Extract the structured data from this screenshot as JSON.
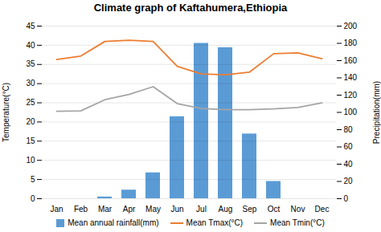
{
  "chart_data": {
    "type": "bar",
    "title": "Climate graph of Kaftahumera,Ethiopia",
    "categories": [
      "Jan",
      "Feb",
      "Mar",
      "Apr",
      "May",
      "Jun",
      "Jul",
      "Aug",
      "Sep",
      "Oct",
      "Nov",
      "Dec"
    ],
    "series": [
      {
        "name": "Mean annual rainfall(mm)",
        "type": "bar",
        "color": "#5B9BD5",
        "axis": "y2",
        "values": [
          0,
          0,
          2,
          10,
          30,
          95,
          180,
          175,
          75,
          20,
          0,
          0
        ]
      },
      {
        "name": "Mean Tmax(°C)",
        "type": "line",
        "color": "#ED7D31",
        "values": [
          36.3,
          37.2,
          41.0,
          41.3,
          41.0,
          34.5,
          32.5,
          32.3,
          33.0,
          37.8,
          38.0,
          36.5
        ]
      },
      {
        "name": "Mean Tmin(°C)",
        "type": "line",
        "color": "#A5A5A5",
        "values": [
          22.8,
          22.9,
          25.8,
          27.2,
          29.2,
          24.8,
          23.5,
          23.2,
          23.2,
          23.4,
          23.8,
          25.0
        ]
      }
    ],
    "ylabel": "Temperature(°C)",
    "y2label": "Precipitation(mm)",
    "ylim": [
      0,
      45
    ],
    "yticks": [
      0,
      5,
      10,
      15,
      20,
      25,
      30,
      35,
      40,
      45
    ],
    "y2lim": [
      0,
      200
    ],
    "y2ticks": [
      0,
      20,
      40,
      60,
      80,
      100,
      120,
      140,
      160,
      180,
      200
    ],
    "grid": true,
    "legend": "bottom"
  }
}
